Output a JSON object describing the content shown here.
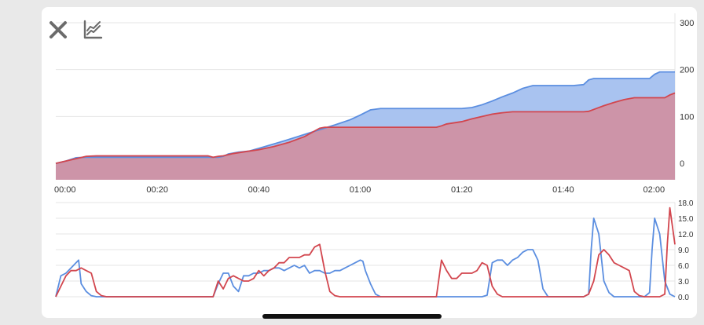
{
  "toolbar": {
    "close_icon": "close-icon",
    "chart_icon": "line-chart-icon",
    "icon_color": "#6b6b6b"
  },
  "colors": {
    "blue": "#5b8ee0",
    "red": "#d2464e",
    "blue_fill": "#a9c3f0",
    "red_fill": "#c0899c",
    "grid": "#e6e6e6"
  },
  "chart_data": [
    {
      "type": "area",
      "x_labels": [
        "00:00",
        "00:20",
        "00:40",
        "01:00",
        "01:20",
        "01:40",
        "02:00"
      ],
      "x_ticks_min": [
        0,
        20,
        40,
        60,
        80,
        100,
        120
      ],
      "xlim": [
        0,
        122
      ],
      "ylim": [
        -35,
        320
      ],
      "y_ticks": [
        0,
        100,
        200,
        300
      ],
      "y_tick_labels": [
        "0",
        "100",
        "200",
        "300"
      ],
      "legend": "none",
      "grid": true,
      "series": [
        {
          "color": "#5b8ee0",
          "points": [
            [
              0,
              0
            ],
            [
              2,
              5
            ],
            [
              4,
              12
            ],
            [
              6,
              13
            ],
            [
              8,
              13
            ],
            [
              10,
              13
            ],
            [
              20,
              13
            ],
            [
              30,
              13
            ],
            [
              32,
              13
            ],
            [
              33,
              15
            ],
            [
              34,
              20
            ],
            [
              36,
              24
            ],
            [
              38,
              26
            ],
            [
              40,
              32
            ],
            [
              45,
              48
            ],
            [
              50,
              65
            ],
            [
              55,
              82
            ],
            [
              58,
              93
            ],
            [
              60,
              103
            ],
            [
              62,
              114
            ],
            [
              64,
              117
            ],
            [
              66,
              117
            ],
            [
              80,
              117
            ],
            [
              82,
              119
            ],
            [
              84,
              125
            ],
            [
              86,
              133
            ],
            [
              88,
              142
            ],
            [
              90,
              150
            ],
            [
              92,
              160
            ],
            [
              94,
              166
            ],
            [
              98,
              166
            ],
            [
              102,
              166
            ],
            [
              104,
              168
            ],
            [
              105,
              178
            ],
            [
              106,
              181
            ],
            [
              110,
              181
            ],
            [
              117,
              181
            ],
            [
              118,
              190
            ],
            [
              119,
              195
            ],
            [
              122,
              195
            ]
          ]
        },
        {
          "color": "#d2464e",
          "points": [
            [
              0,
              0
            ],
            [
              2,
              5
            ],
            [
              4,
              10
            ],
            [
              6,
              15
            ],
            [
              8,
              16
            ],
            [
              10,
              16
            ],
            [
              20,
              16
            ],
            [
              30,
              16
            ],
            [
              31,
              13
            ],
            [
              32,
              15
            ],
            [
              33,
              16
            ],
            [
              35,
              21
            ],
            [
              38,
              26
            ],
            [
              40,
              29
            ],
            [
              43,
              36
            ],
            [
              46,
              45
            ],
            [
              49,
              57
            ],
            [
              50,
              63
            ],
            [
              51,
              69
            ],
            [
              52,
              75
            ],
            [
              53,
              77
            ],
            [
              60,
              77
            ],
            [
              70,
              77
            ],
            [
              75,
              77
            ],
            [
              76,
              80
            ],
            [
              77,
              84
            ],
            [
              80,
              89
            ],
            [
              82,
              95
            ],
            [
              84,
              100
            ],
            [
              86,
              105
            ],
            [
              88,
              108
            ],
            [
              90,
              110
            ],
            [
              95,
              110
            ],
            [
              100,
              110
            ],
            [
              104,
              110
            ],
            [
              105,
              111
            ],
            [
              106,
              115
            ],
            [
              108,
              123
            ],
            [
              110,
              130
            ],
            [
              112,
              136
            ],
            [
              114,
              140
            ],
            [
              116,
              140
            ],
            [
              118,
              140
            ],
            [
              120,
              140
            ],
            [
              121,
              146
            ],
            [
              122,
              150
            ]
          ]
        }
      ]
    },
    {
      "type": "line",
      "xlim": [
        0,
        122
      ],
      "ylim": [
        0,
        18
      ],
      "y_ticks": [
        0,
        3,
        6,
        9,
        12,
        15,
        18
      ],
      "y_tick_labels": [
        "0.0",
        "3.0",
        "6.0",
        "9.0",
        "12.0",
        "15.0",
        "18.0"
      ],
      "legend": "none",
      "grid": true,
      "series": [
        {
          "color": "#5b8ee0",
          "points": [
            [
              0,
              0
            ],
            [
              1,
              4
            ],
            [
              2,
              4.5
            ],
            [
              3,
              5.5
            ],
            [
              4,
              6.5
            ],
            [
              4.5,
              7
            ],
            [
              5,
              2.5
            ],
            [
              6,
              1
            ],
            [
              7,
              0.2
            ],
            [
              8,
              0
            ],
            [
              20,
              0
            ],
            [
              30,
              0
            ],
            [
              31,
              0
            ],
            [
              32,
              2.5
            ],
            [
              33,
              4.5
            ],
            [
              34,
              4.5
            ],
            [
              35,
              2
            ],
            [
              36,
              1
            ],
            [
              37,
              4
            ],
            [
              38,
              4
            ],
            [
              39,
              4.5
            ],
            [
              40,
              4.5
            ],
            [
              41,
              5
            ],
            [
              42,
              5
            ],
            [
              43,
              5.5
            ],
            [
              44,
              5.5
            ],
            [
              45,
              5
            ],
            [
              46,
              5.5
            ],
            [
              47,
              6
            ],
            [
              48,
              5.5
            ],
            [
              49,
              6
            ],
            [
              50,
              4.5
            ],
            [
              51,
              5
            ],
            [
              52,
              5
            ],
            [
              53,
              4.5
            ],
            [
              54,
              4.5
            ],
            [
              55,
              5
            ],
            [
              56,
              5
            ],
            [
              57,
              5.5
            ],
            [
              58,
              6
            ],
            [
              59,
              6.5
            ],
            [
              60,
              7
            ],
            [
              60.5,
              6.8
            ],
            [
              61,
              5
            ],
            [
              62,
              2.5
            ],
            [
              63,
              0.5
            ],
            [
              64,
              0
            ],
            [
              80,
              0
            ],
            [
              82,
              0
            ],
            [
              84,
              0
            ],
            [
              85,
              0.3
            ],
            [
              86,
              6.5
            ],
            [
              87,
              7
            ],
            [
              88,
              7
            ],
            [
              89,
              6
            ],
            [
              90,
              7
            ],
            [
              91,
              7.5
            ],
            [
              92,
              8.5
            ],
            [
              93,
              9
            ],
            [
              94,
              9
            ],
            [
              95,
              7
            ],
            [
              96,
              1.5
            ],
            [
              97,
              0
            ],
            [
              104,
              0
            ],
            [
              105,
              0.5
            ],
            [
              105.5,
              9
            ],
            [
              106,
              15
            ],
            [
              107,
              12
            ],
            [
              108,
              3
            ],
            [
              109,
              0.8
            ],
            [
              110,
              0
            ],
            [
              116,
              0
            ],
            [
              117,
              0.8
            ],
            [
              117.5,
              9
            ],
            [
              118,
              15
            ],
            [
              119,
              12
            ],
            [
              120,
              3
            ],
            [
              121,
              0.5
            ],
            [
              122,
              0
            ]
          ]
        },
        {
          "color": "#d2464e",
          "points": [
            [
              0,
              0
            ],
            [
              1,
              2
            ],
            [
              2,
              4
            ],
            [
              3,
              5
            ],
            [
              4,
              5
            ],
            [
              5,
              5.5
            ],
            [
              6,
              5
            ],
            [
              7,
              4.5
            ],
            [
              8,
              1
            ],
            [
              9,
              0.2
            ],
            [
              10,
              0
            ],
            [
              20,
              0
            ],
            [
              30,
              0
            ],
            [
              31,
              0
            ],
            [
              32,
              3
            ],
            [
              33,
              1.5
            ],
            [
              34,
              3.5
            ],
            [
              35,
              4
            ],
            [
              36,
              3.5
            ],
            [
              37,
              3
            ],
            [
              38,
              3
            ],
            [
              39,
              3.5
            ],
            [
              40,
              5
            ],
            [
              41,
              4
            ],
            [
              42,
              5
            ],
            [
              43,
              5.5
            ],
            [
              44,
              6.5
            ],
            [
              45,
              6.5
            ],
            [
              46,
              7.5
            ],
            [
              47,
              7.5
            ],
            [
              48,
              7.5
            ],
            [
              49,
              8
            ],
            [
              50,
              8
            ],
            [
              51,
              9.5
            ],
            [
              52,
              10
            ],
            [
              53,
              5
            ],
            [
              54,
              1
            ],
            [
              55,
              0.2
            ],
            [
              56,
              0
            ],
            [
              70,
              0
            ],
            [
              75,
              0
            ],
            [
              76,
              7
            ],
            [
              77,
              5
            ],
            [
              78,
              3.5
            ],
            [
              79,
              3.5
            ],
            [
              80,
              4.5
            ],
            [
              81,
              4.5
            ],
            [
              82,
              4.5
            ],
            [
              83,
              5
            ],
            [
              84,
              6.5
            ],
            [
              85,
              6
            ],
            [
              86,
              2
            ],
            [
              87,
              0.5
            ],
            [
              88,
              0
            ],
            [
              100,
              0
            ],
            [
              104,
              0
            ],
            [
              105,
              0.5
            ],
            [
              106,
              3
            ],
            [
              107,
              8
            ],
            [
              108,
              9
            ],
            [
              109,
              8
            ],
            [
              110,
              6.5
            ],
            [
              111,
              6
            ],
            [
              112,
              5.5
            ],
            [
              113,
              5
            ],
            [
              114,
              1
            ],
            [
              115,
              0.2
            ],
            [
              116,
              0
            ],
            [
              119,
              0
            ],
            [
              120,
              0.5
            ],
            [
              120.5,
              10
            ],
            [
              121,
              17
            ],
            [
              122,
              10
            ]
          ]
        }
      ]
    }
  ]
}
